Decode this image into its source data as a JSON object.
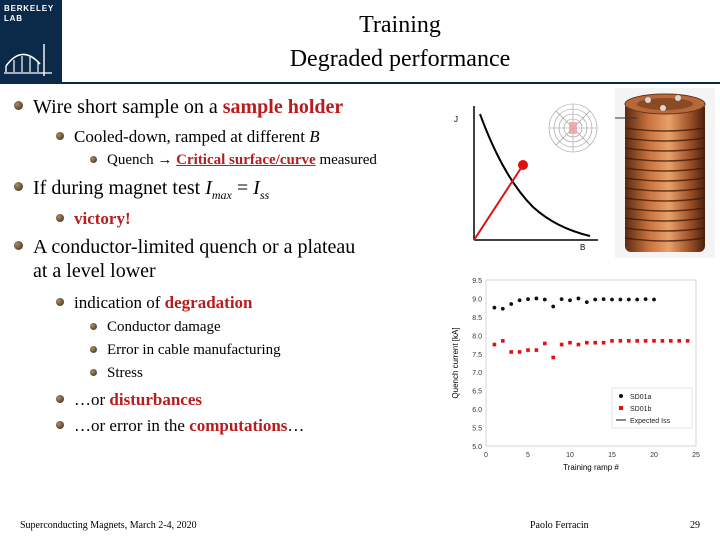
{
  "header": {
    "logo_line1": "BERKELEY",
    "logo_line2": "LAB",
    "title_line1": "Training",
    "title_line2": "Degraded performance"
  },
  "bullets": {
    "b1": {
      "pre": "Wire short sample on a ",
      "hl": "sample holder"
    },
    "b1a": {
      "pre": "Cooled-down, ramped at different ",
      "it": "B"
    },
    "b1b": {
      "pre": "Quench ",
      "arrow": "→",
      "hl": "Critical surface/curve",
      "post": " measured"
    },
    "b2": {
      "pre": "If during magnet test ",
      "i1": "I",
      "s1": "max",
      "mid": " = ",
      "i2": "I",
      "s2": "ss"
    },
    "b2a": {
      "hl": "victory!"
    },
    "b3": {
      "line1": "A conductor-limited quench or a plateau",
      "line2": "at a level lower"
    },
    "b3a": {
      "pre": "indication of ",
      "hl": "degradation"
    },
    "b3b": "Conductor damage",
    "b3c": "Error in cable manufacturing",
    "b3d": "Stress",
    "b3e": {
      "pre": "…or ",
      "hl": "disturbances"
    },
    "b3f": {
      "pre": "…or error in the ",
      "hl": "computations",
      "post": "…"
    }
  },
  "sketch": {
    "ylabel": "J",
    "xlabel": "B"
  },
  "footer": {
    "left": "Superconducting Magnets, March 2-4, 2020",
    "center": "Paolo Ferracin",
    "page": "29"
  },
  "colors": {
    "accent": "#b81c1c",
    "navy": "#0b2a4a"
  },
  "chart_data": {
    "type": "scatter",
    "title": "",
    "xlabel": "Training ramp #",
    "ylabel": "Quench current [kA]",
    "xlim": [
      0,
      25
    ],
    "ylim": [
      5.0,
      9.5
    ],
    "xticks": [
      "0",
      "5",
      "10",
      "15",
      "20",
      "25"
    ],
    "yticks": [
      "5.0",
      "5.5",
      "6.0",
      "6.5",
      "7.0",
      "7.5",
      "8.0",
      "8.5",
      "9.0",
      "9.5"
    ],
    "legend_position": "bottom-right",
    "series": [
      {
        "name": "SD01a",
        "color": "#111111",
        "x": [
          1,
          2,
          3,
          4,
          5,
          6,
          7,
          8,
          9,
          10,
          11,
          12,
          13,
          14,
          15,
          16,
          17,
          18,
          19,
          20
        ],
        "y": [
          8.75,
          8.72,
          8.85,
          8.95,
          8.98,
          9.0,
          8.97,
          8.78,
          8.98,
          8.95,
          9.0,
          8.9,
          8.97,
          8.98,
          8.97,
          8.97,
          8.97,
          8.97,
          8.98,
          8.97
        ]
      },
      {
        "name": "SD01b",
        "color": "#e01010",
        "x": [
          1,
          2,
          3,
          4,
          5,
          6,
          7,
          8,
          9,
          10,
          11,
          12,
          13,
          14,
          15,
          16,
          17,
          18,
          19,
          20,
          21,
          22,
          23,
          24
        ],
        "y": [
          7.75,
          7.85,
          7.55,
          7.55,
          7.6,
          7.6,
          7.78,
          7.4,
          7.75,
          7.8,
          7.75,
          7.8,
          7.8,
          7.8,
          7.85,
          7.85,
          7.85,
          7.85,
          7.85,
          7.85,
          7.85,
          7.85,
          7.85,
          7.85
        ]
      },
      {
        "name": "Expected Iss",
        "color": "#111111",
        "style": "line",
        "x": [],
        "y": []
      }
    ]
  }
}
